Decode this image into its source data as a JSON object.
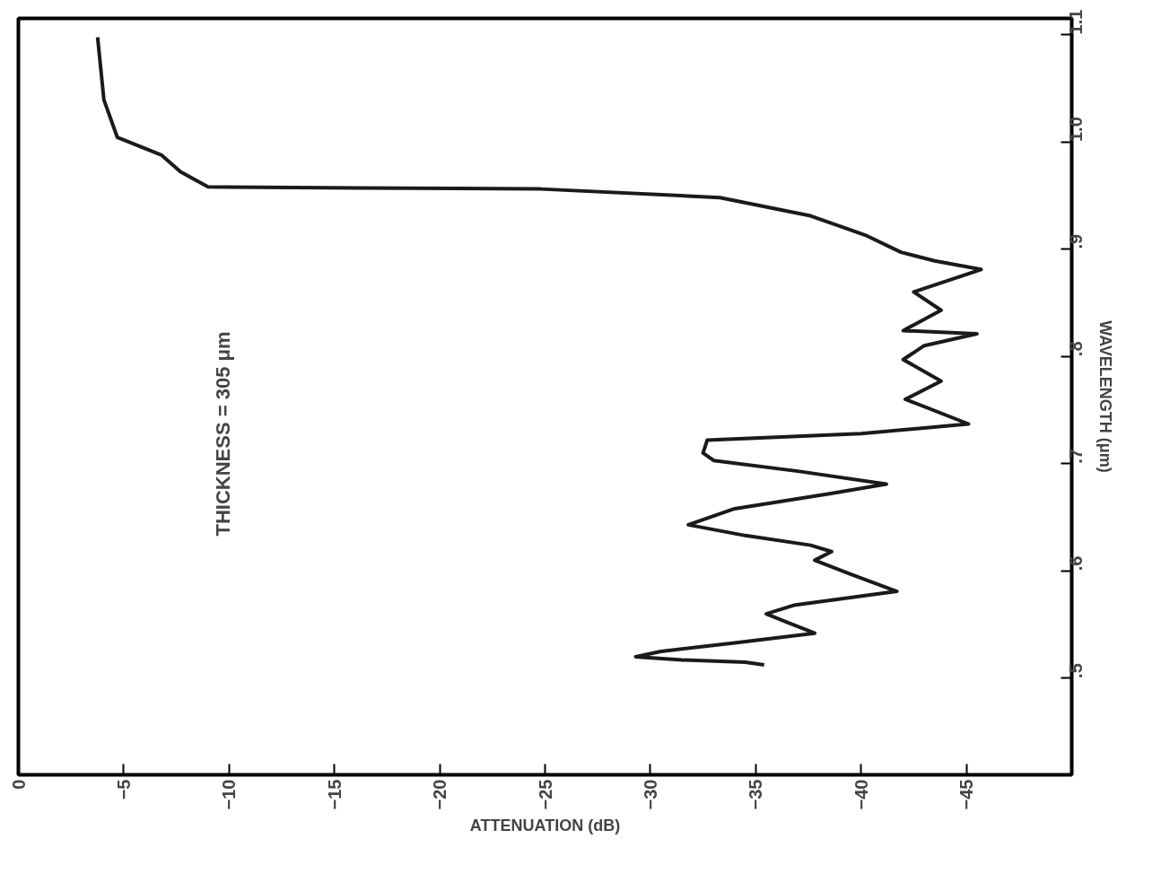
{
  "chart_data": {
    "type": "line",
    "xlabel": "ATTENUATION (dB)",
    "ylabel": "WAVELENGTH (μm)",
    "annotations": [
      "THICKNESS = 305 μm"
    ],
    "xlim": [
      0,
      -50
    ],
    "ylim": [
      0.41,
      1.115
    ],
    "xticks": [
      0,
      -5,
      -10,
      -15,
      -20,
      -25,
      -30,
      -35,
      -40,
      -45
    ],
    "yticks": [
      {
        "value": 0.5,
        "label": ".5"
      },
      {
        "value": 0.6,
        "label": ".6"
      },
      {
        "value": 0.7,
        "label": ".7"
      },
      {
        "value": 0.8,
        "label": ".8"
      },
      {
        "value": 0.9,
        "label": ".9"
      },
      {
        "value": 1.0,
        "label": "1.0"
      },
      {
        "value": 1.1,
        "label": "1.1"
      }
    ],
    "grid": false,
    "marker": "none",
    "line_style": "solid",
    "series": [
      {
        "color": "#1a1a1a",
        "x": [
          -35.4,
          -34.5,
          -31.5,
          -29.3,
          -30.5,
          -34.0,
          -37.8,
          -36.5,
          -35.5,
          -36.8,
          -41.7,
          -39.5,
          -37.8,
          -38.6,
          -37.6,
          -34.5,
          -31.8,
          -34.0,
          -38.5,
          -41.2,
          -37.0,
          -33.0,
          -32.5,
          -32.7,
          -40.0,
          -45.1,
          -42.1,
          -43.8,
          -42.0,
          -43.0,
          -45.5,
          -42.0,
          -43.8,
          -42.5,
          -45.7,
          -43.5,
          -41.9,
          -40.2,
          -37.6,
          -33.3,
          -24.8,
          -16.2,
          -9.0,
          -7.7,
          -6.8,
          -4.7,
          -4.06,
          -3.76
        ],
        "values": [
          0.5125,
          0.515,
          0.517,
          0.52,
          0.525,
          0.533,
          0.542,
          0.552,
          0.56,
          0.568,
          0.581,
          0.597,
          0.61,
          0.618,
          0.624,
          0.633,
          0.643,
          0.658,
          0.672,
          0.681,
          0.693,
          0.703,
          0.71,
          0.722,
          0.728,
          0.737,
          0.76,
          0.777,
          0.797,
          0.81,
          0.821,
          0.824,
          0.843,
          0.86,
          0.881,
          0.889,
          0.897,
          0.913,
          0.931,
          0.948,
          0.956,
          0.957,
          0.958,
          0.972,
          0.9875,
          1.004,
          1.039,
          1.0975
        ]
      }
    ]
  }
}
